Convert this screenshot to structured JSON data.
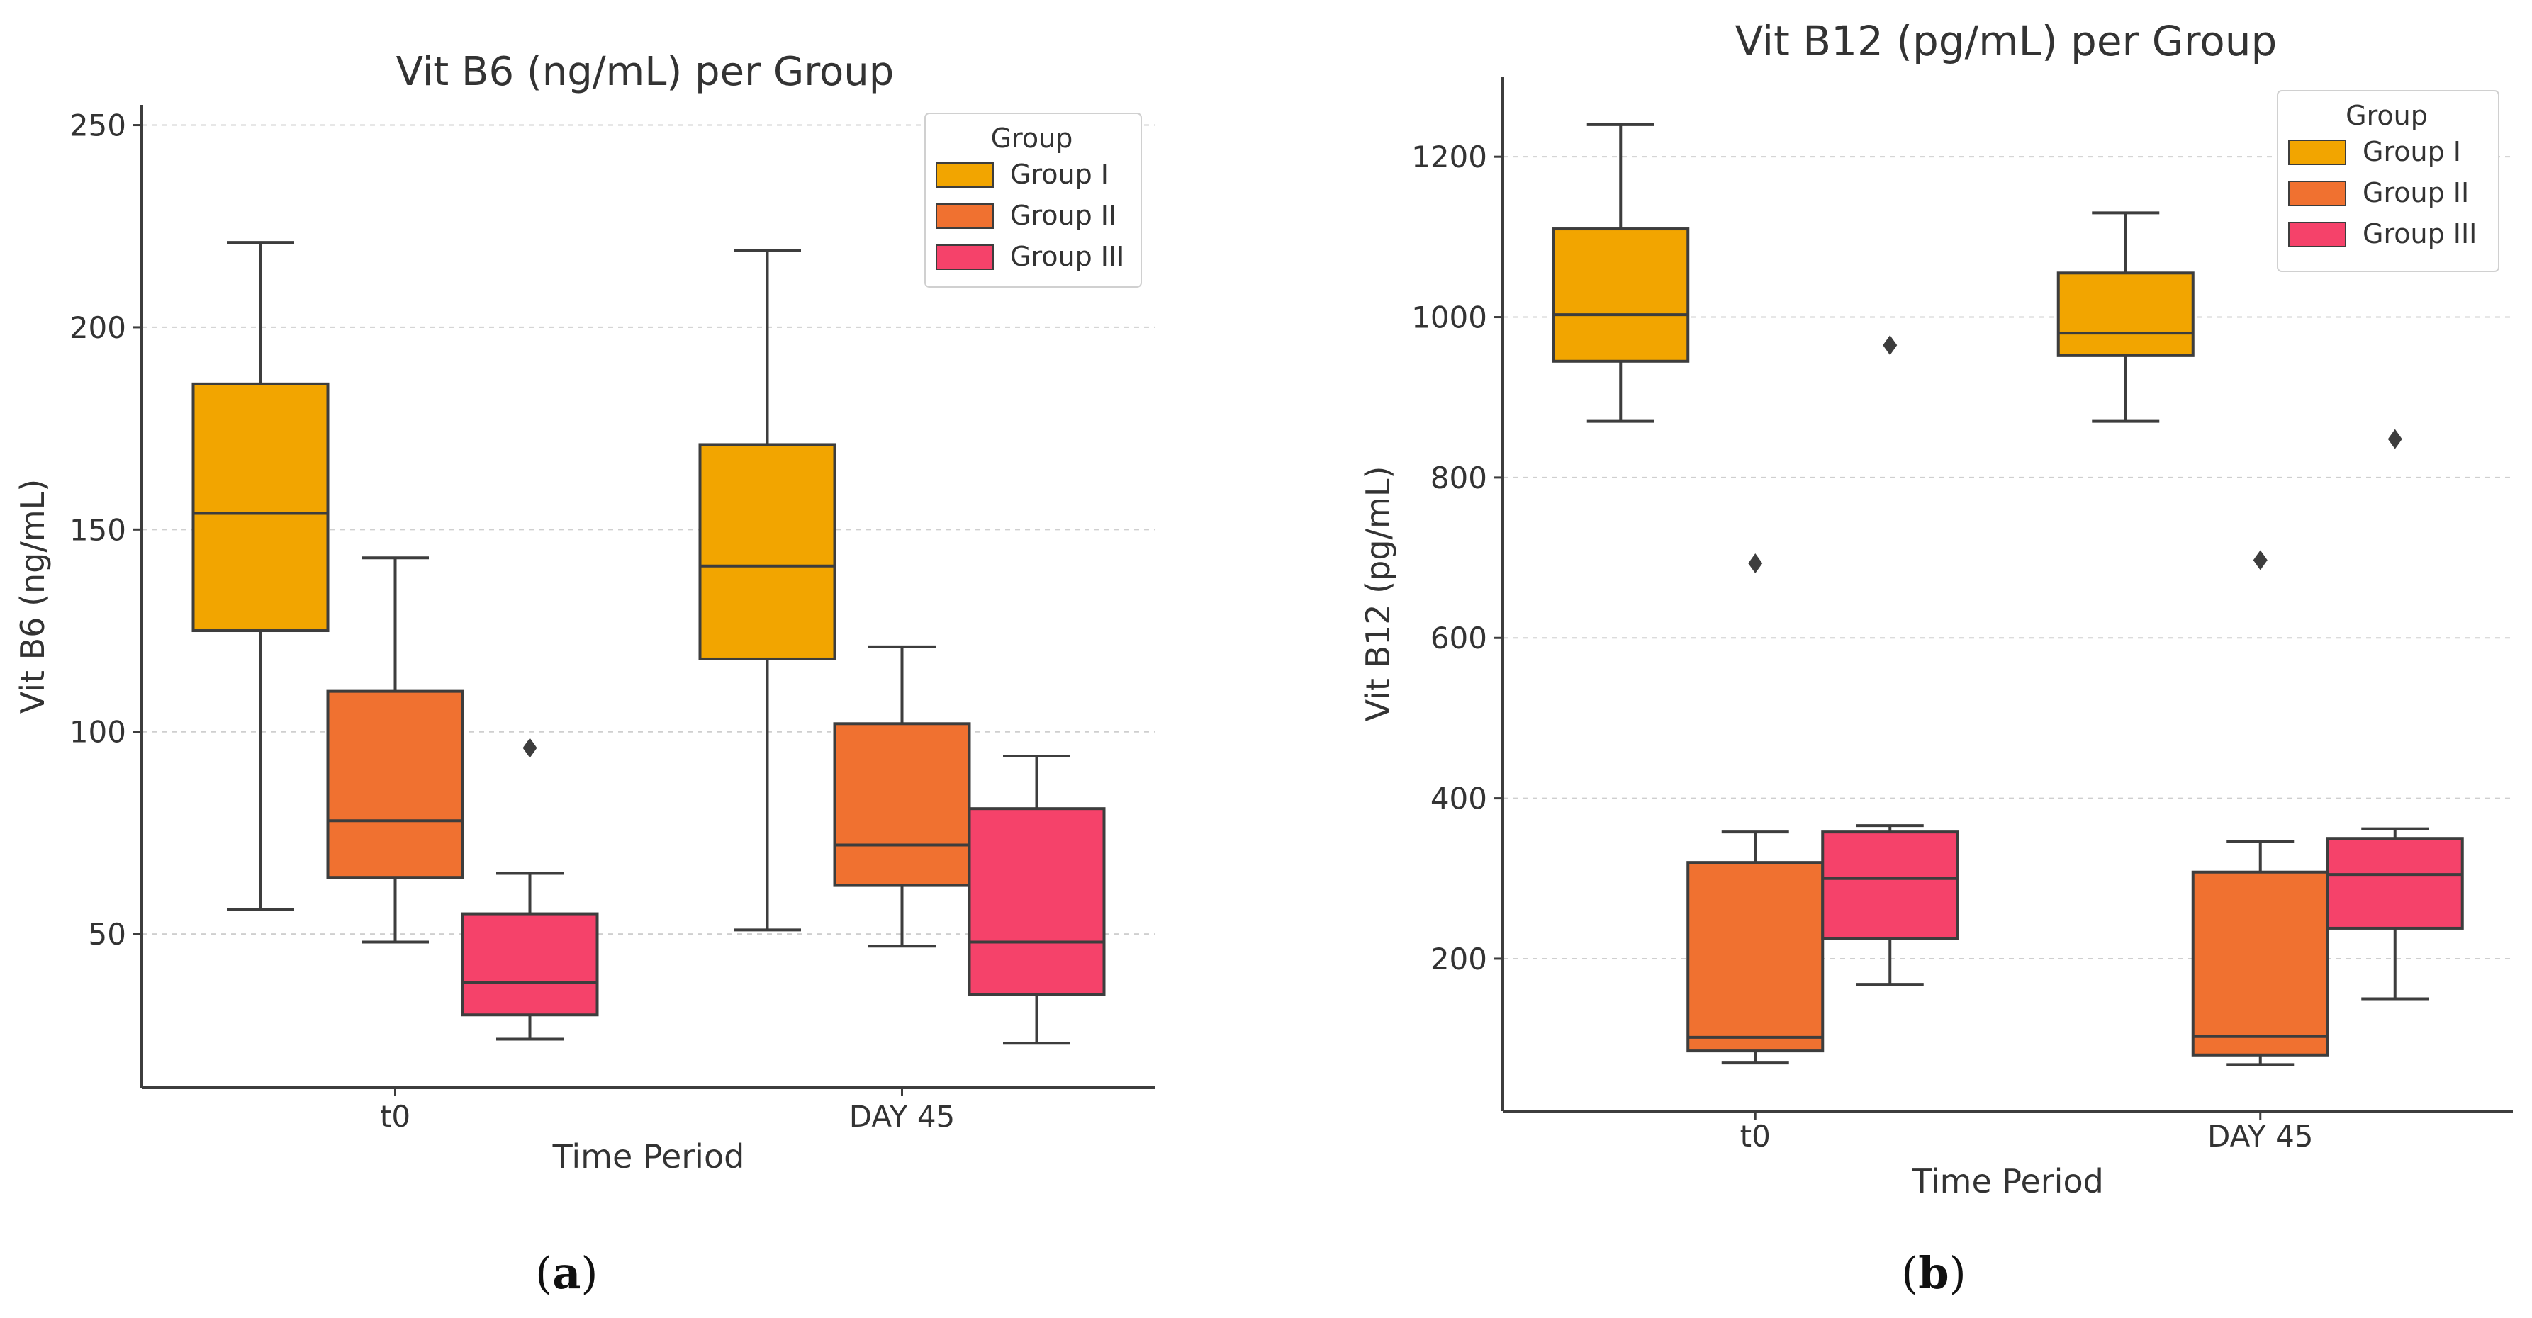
{
  "colors": {
    "group1": "#F2A500",
    "group2": "#F07130",
    "group3": "#F5426A",
    "line": "#3d3d3d",
    "grid": "#cfcfcf"
  },
  "chart_data": [
    {
      "type": "box",
      "title": "Vit B6 (ng/mL) per Group",
      "xlabel": "Time Period",
      "ylabel": "Vit B6 (ng/mL)",
      "ylim": [
        12,
        255
      ],
      "yticks": [
        50,
        100,
        150,
        200,
        250
      ],
      "categories": [
        "t0",
        "DAY 45"
      ],
      "legend": {
        "title": "Group",
        "placement": "top-right"
      },
      "series": [
        {
          "name": "Group I",
          "color_key": "group1",
          "boxes": [
            {
              "whislo": 56,
              "q1": 125,
              "med": 154,
              "q3": 186,
              "whishi": 221,
              "fliers": []
            },
            {
              "whislo": 51,
              "q1": 118,
              "med": 141,
              "q3": 171,
              "whishi": 219,
              "fliers": []
            }
          ]
        },
        {
          "name": "Group II",
          "color_key": "group2",
          "boxes": [
            {
              "whislo": 48,
              "q1": 64,
              "med": 78,
              "q3": 110,
              "whishi": 143,
              "fliers": []
            },
            {
              "whislo": 47,
              "q1": 62,
              "med": 72,
              "q3": 102,
              "whishi": 121,
              "fliers": []
            }
          ]
        },
        {
          "name": "Group III",
          "color_key": "group3",
          "boxes": [
            {
              "whislo": 24,
              "q1": 30,
              "med": 38,
              "q3": 55,
              "whishi": 65,
              "fliers": [
                96
              ]
            },
            {
              "whislo": 23,
              "q1": 35,
              "med": 48,
              "q3": 81,
              "whishi": 94,
              "fliers": []
            }
          ]
        }
      ]
    },
    {
      "type": "box",
      "title": "Vit B12 (pg/mL) per Group",
      "xlabel": "Time Period",
      "ylabel": "Vit B12 (pg/mL)",
      "ylim": [
        10,
        1300
      ],
      "yticks": [
        200,
        400,
        600,
        800,
        1000,
        1200
      ],
      "categories": [
        "t0",
        "DAY 45"
      ],
      "legend": {
        "title": "Group",
        "placement": "top-right"
      },
      "series": [
        {
          "name": "Group I",
          "color_key": "group1",
          "boxes": [
            {
              "whislo": 870,
              "q1": 945,
              "med": 1003,
              "q3": 1110,
              "whishi": 1240,
              "fliers": []
            },
            {
              "whislo": 870,
              "q1": 952,
              "med": 980,
              "q3": 1055,
              "whishi": 1130,
              "fliers": []
            }
          ]
        },
        {
          "name": "Group II",
          "color_key": "group2",
          "boxes": [
            {
              "whislo": 70,
              "q1": 85,
              "med": 102,
              "q3": 320,
              "whishi": 358,
              "fliers": [
                693
              ]
            },
            {
              "whislo": 68,
              "q1": 80,
              "med": 103,
              "q3": 308,
              "whishi": 346,
              "fliers": [
                697
              ]
            }
          ]
        },
        {
          "name": "Group III",
          "color_key": "group3",
          "boxes": [
            {
              "whislo": 168,
              "q1": 225,
              "med": 300,
              "q3": 358,
              "whishi": 366,
              "fliers": [
                965
              ]
            },
            {
              "whislo": 150,
              "q1": 238,
              "med": 305,
              "q3": 350,
              "whishi": 362,
              "fliers": [
                848
              ]
            }
          ]
        }
      ]
    }
  ],
  "captions": [
    {
      "open": "(",
      "letter": "a",
      "close": ")"
    },
    {
      "open": "(",
      "letter": "b",
      "close": ")"
    }
  ]
}
